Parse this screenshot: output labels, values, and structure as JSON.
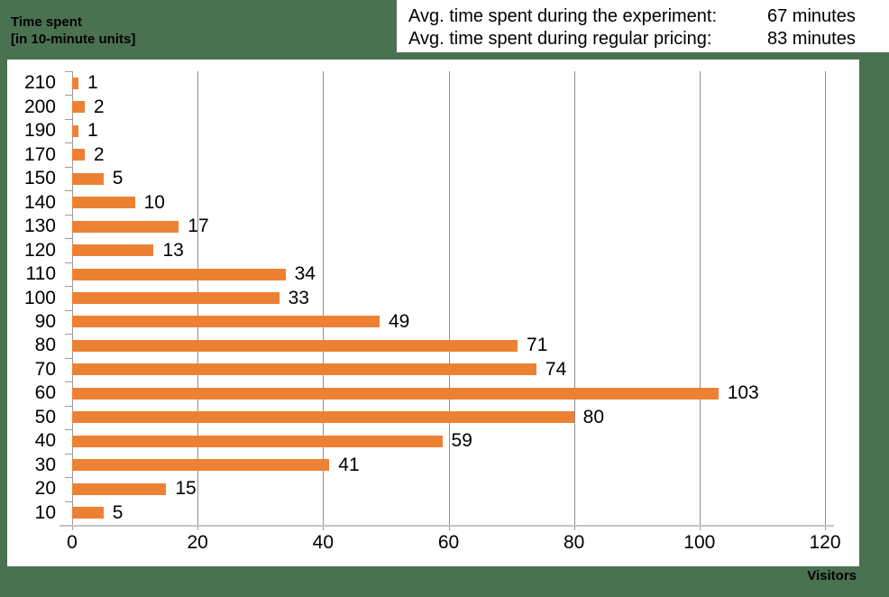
{
  "colors": {
    "background": "#4a7150",
    "bar": "#ed8133",
    "gridline": "#8f8f8f",
    "axis": "#9c9c9c",
    "panel": "#ffffff",
    "text": "#000000"
  },
  "y_axis_title": {
    "line1": "Time spent",
    "line2": "[in 10-minute units]"
  },
  "x_axis_title": "Visitors",
  "legend": {
    "rows": [
      {
        "label": "Avg. time spent during the experiment:",
        "value": "67 minutes"
      },
      {
        "label": "Avg. time spent during regular pricing:",
        "value": "83 minutes"
      }
    ]
  },
  "chart_data": {
    "type": "bar",
    "orientation": "horizontal",
    "title": "",
    "xlabel": "Visitors",
    "ylabel": "Time spent [in 10-minute units]",
    "categories": [
      "210",
      "200",
      "190",
      "170",
      "150",
      "140",
      "130",
      "120",
      "110",
      "100",
      "90",
      "80",
      "70",
      "60",
      "50",
      "40",
      "30",
      "20",
      "10"
    ],
    "values": [
      1,
      2,
      1,
      2,
      5,
      10,
      17,
      13,
      34,
      33,
      49,
      71,
      74,
      103,
      80,
      59,
      41,
      15,
      5
    ],
    "xlim": [
      0,
      120
    ],
    "x_ticks": [
      0,
      20,
      40,
      60,
      80,
      100,
      120
    ],
    "grid": true,
    "data_labels": true,
    "bar_color": "#ed8133",
    "legend_position": "top-right",
    "annotations": [
      "Avg. time spent during the experiment: 67 minutes",
      "Avg. time spent during regular pricing: 83 minutes"
    ]
  }
}
